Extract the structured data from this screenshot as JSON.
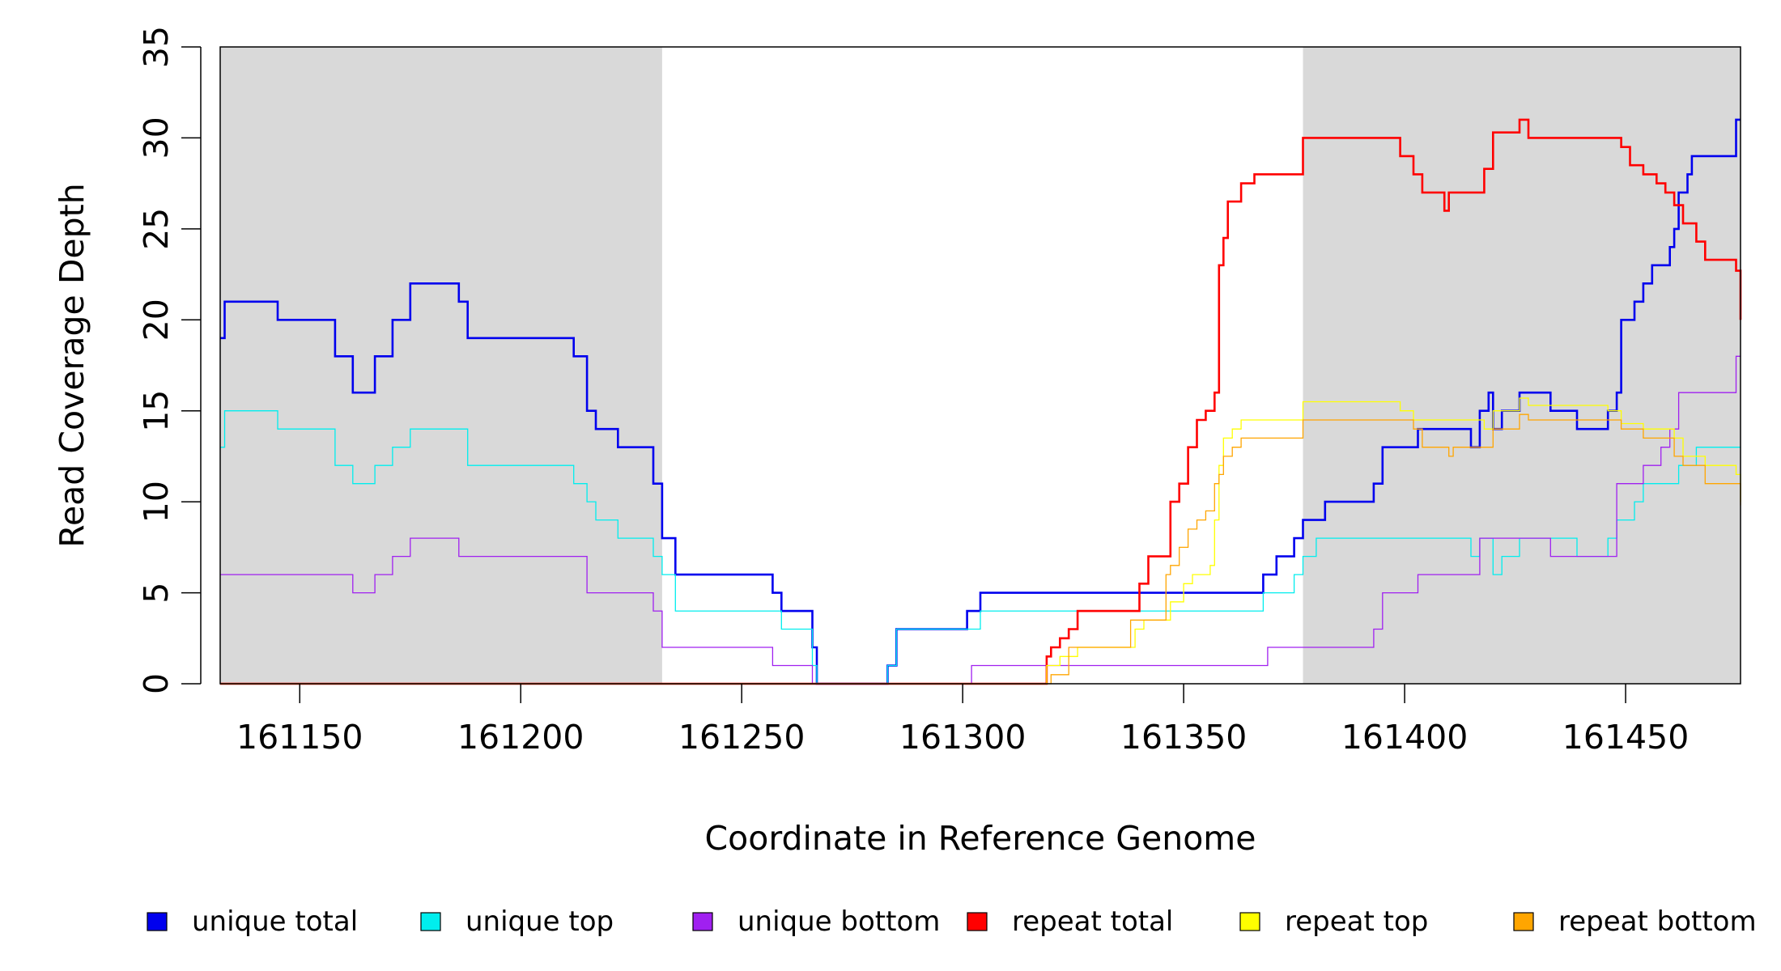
{
  "chart_data": {
    "type": "line",
    "title": "",
    "xlabel": "Coordinate in Reference Genome",
    "ylabel": "Read Coverage Depth",
    "xlim": [
      161132,
      161476
    ],
    "ylim": [
      0,
      35
    ],
    "x_ticks": [
      161150,
      161200,
      161250,
      161300,
      161350,
      161400,
      161450
    ],
    "y_ticks": [
      0,
      5,
      10,
      15,
      20,
      25,
      30,
      35
    ],
    "grid": false,
    "legend_position": "bottom",
    "shaded_regions": [
      {
        "x0": 161132,
        "x1": 161232,
        "color": "#d9d9d9"
      },
      {
        "x0": 161377,
        "x1": 161476,
        "color": "#d9d9d9"
      }
    ],
    "series": [
      {
        "name": "unique total",
        "color": "#0000ee",
        "width": 2.6,
        "points": [
          [
            161132,
            19
          ],
          [
            161133,
            21
          ],
          [
            161145,
            20
          ],
          [
            161158,
            18
          ],
          [
            161162,
            16
          ],
          [
            161167,
            18
          ],
          [
            161171,
            20
          ],
          [
            161175,
            22
          ],
          [
            161186,
            21
          ],
          [
            161188,
            19
          ],
          [
            161200,
            19
          ],
          [
            161212,
            18
          ],
          [
            161215,
            15
          ],
          [
            161217,
            14
          ],
          [
            161222,
            13
          ],
          [
            161230,
            11
          ],
          [
            161232,
            8
          ],
          [
            161235,
            6
          ],
          [
            161257,
            5
          ],
          [
            161259,
            4
          ],
          [
            161266,
            2
          ],
          [
            161267,
            0
          ],
          [
            161283,
            1
          ],
          [
            161285,
            3
          ],
          [
            161293,
            3
          ],
          [
            161301,
            4
          ],
          [
            161304,
            5
          ],
          [
            161320,
            5
          ],
          [
            161338,
            5
          ],
          [
            161340,
            5
          ],
          [
            161368,
            6
          ],
          [
            161371,
            7
          ],
          [
            161375,
            8
          ],
          [
            161377,
            9
          ],
          [
            161382,
            10
          ],
          [
            161393,
            11
          ],
          [
            161395,
            13
          ],
          [
            161403,
            14
          ],
          [
            161415,
            13
          ],
          [
            161417,
            15
          ],
          [
            161419,
            16
          ],
          [
            161420,
            14
          ],
          [
            161422,
            15
          ],
          [
            161426,
            16
          ],
          [
            161433,
            15
          ],
          [
            161439,
            14
          ],
          [
            161446,
            15
          ],
          [
            161448,
            16
          ],
          [
            161449,
            20
          ],
          [
            161452,
            21
          ],
          [
            161454,
            22
          ],
          [
            161456,
            23
          ],
          [
            161460,
            24
          ],
          [
            161461,
            25
          ],
          [
            161462,
            27
          ],
          [
            161464,
            28
          ],
          [
            161465,
            29
          ],
          [
            161475,
            31
          ],
          [
            161476,
            31
          ]
        ]
      },
      {
        "name": "unique top",
        "color": "#00eeee",
        "width": 1.3,
        "points": [
          [
            161132,
            13
          ],
          [
            161133,
            15
          ],
          [
            161145,
            14
          ],
          [
            161158,
            12
          ],
          [
            161162,
            11
          ],
          [
            161167,
            12
          ],
          [
            161171,
            13
          ],
          [
            161175,
            14
          ],
          [
            161188,
            12
          ],
          [
            161212,
            11
          ],
          [
            161215,
            10
          ],
          [
            161217,
            9
          ],
          [
            161222,
            8
          ],
          [
            161230,
            7
          ],
          [
            161232,
            6
          ],
          [
            161235,
            4
          ],
          [
            161259,
            3
          ],
          [
            161266,
            1
          ],
          [
            161267,
            0
          ],
          [
            161283,
            1
          ],
          [
            161285,
            3
          ],
          [
            161301,
            3
          ],
          [
            161304,
            4
          ],
          [
            161368,
            5
          ],
          [
            161371,
            5
          ],
          [
            161375,
            6
          ],
          [
            161377,
            7
          ],
          [
            161380,
            8
          ],
          [
            161415,
            7
          ],
          [
            161417,
            8
          ],
          [
            161420,
            6
          ],
          [
            161422,
            7
          ],
          [
            161426,
            8
          ],
          [
            161439,
            7
          ],
          [
            161446,
            8
          ],
          [
            161448,
            9
          ],
          [
            161452,
            10
          ],
          [
            161454,
            11
          ],
          [
            161462,
            12
          ],
          [
            161466,
            13
          ],
          [
            161476,
            13
          ]
        ]
      },
      {
        "name": "unique bottom",
        "color": "#a020f0",
        "width": 1.3,
        "points": [
          [
            161132,
            6
          ],
          [
            161162,
            5
          ],
          [
            161167,
            6
          ],
          [
            161171,
            7
          ],
          [
            161175,
            8
          ],
          [
            161186,
            7
          ],
          [
            161215,
            5
          ],
          [
            161230,
            4
          ],
          [
            161232,
            2
          ],
          [
            161257,
            1
          ],
          [
            161266,
            0
          ],
          [
            161301,
            0
          ],
          [
            161302,
            1
          ],
          [
            161369,
            2
          ],
          [
            161393,
            3
          ],
          [
            161395,
            5
          ],
          [
            161403,
            6
          ],
          [
            161417,
            8
          ],
          [
            161433,
            7
          ],
          [
            161448,
            11
          ],
          [
            161454,
            12
          ],
          [
            161458,
            13
          ],
          [
            161460,
            14
          ],
          [
            161462,
            16
          ],
          [
            161475,
            18
          ],
          [
            161476,
            18
          ]
        ]
      },
      {
        "name": "repeat total",
        "color": "#ff0000",
        "width": 2.6,
        "points": [
          [
            161132,
            0
          ],
          [
            161318,
            0
          ],
          [
            161319,
            1.5
          ],
          [
            161320,
            2
          ],
          [
            161322,
            2.5
          ],
          [
            161324,
            3
          ],
          [
            161326,
            4
          ],
          [
            161338,
            4
          ],
          [
            161340,
            5.5
          ],
          [
            161342,
            7
          ],
          [
            161347,
            10
          ],
          [
            161349,
            11
          ],
          [
            161351,
            13
          ],
          [
            161353,
            14.5
          ],
          [
            161355,
            15
          ],
          [
            161357,
            16
          ],
          [
            161358,
            23
          ],
          [
            161359,
            24.5
          ],
          [
            161360,
            26.5
          ],
          [
            161363,
            27.5
          ],
          [
            161366,
            28
          ],
          [
            161376,
            28
          ],
          [
            161377,
            30
          ],
          [
            161399,
            29
          ],
          [
            161402,
            28
          ],
          [
            161404,
            27
          ],
          [
            161409,
            26
          ],
          [
            161410,
            27
          ],
          [
            161418,
            28.3
          ],
          [
            161420,
            30.3
          ],
          [
            161426,
            31
          ],
          [
            161428,
            30
          ],
          [
            161446,
            30
          ],
          [
            161449,
            29.5
          ],
          [
            161451,
            28.5
          ],
          [
            161454,
            28
          ],
          [
            161457,
            27.5
          ],
          [
            161459,
            27
          ],
          [
            161461,
            26.3
          ],
          [
            161463,
            25.3
          ],
          [
            161466,
            24.3
          ],
          [
            161468,
            23.3
          ],
          [
            161475,
            22.7
          ],
          [
            161476,
            20
          ]
        ]
      },
      {
        "name": "repeat top",
        "color": "#ffff00",
        "width": 1.3,
        "points": [
          [
            161132,
            0
          ],
          [
            161318,
            0
          ],
          [
            161319,
            1
          ],
          [
            161322,
            1.5
          ],
          [
            161326,
            2
          ],
          [
            161338,
            2
          ],
          [
            161339,
            3
          ],
          [
            161341,
            3.5
          ],
          [
            161347,
            4.5
          ],
          [
            161350,
            5.5
          ],
          [
            161352,
            6
          ],
          [
            161356,
            6.5
          ],
          [
            161357,
            9
          ],
          [
            161358,
            12
          ],
          [
            161359,
            13.5
          ],
          [
            161361,
            14
          ],
          [
            161363,
            14.5
          ],
          [
            161376,
            14.5
          ],
          [
            161377,
            15.5
          ],
          [
            161399,
            15
          ],
          [
            161402,
            14.5
          ],
          [
            161418,
            14
          ],
          [
            161420,
            15
          ],
          [
            161426,
            15.7
          ],
          [
            161428,
            15.3
          ],
          [
            161446,
            15
          ],
          [
            161449,
            14.3
          ],
          [
            161454,
            14
          ],
          [
            161461,
            13.5
          ],
          [
            161463,
            12.5
          ],
          [
            161468,
            12
          ],
          [
            161475,
            11.5
          ],
          [
            161476,
            10
          ]
        ]
      },
      {
        "name": "repeat bottom",
        "color": "#ffa500",
        "width": 1.3,
        "points": [
          [
            161132,
            0
          ],
          [
            161318,
            0
          ],
          [
            161320,
            0.5
          ],
          [
            161324,
            2
          ],
          [
            161336,
            2
          ],
          [
            161338,
            3.5
          ],
          [
            161345,
            3.5
          ],
          [
            161346,
            6
          ],
          [
            161347,
            6.5
          ],
          [
            161349,
            7.5
          ],
          [
            161351,
            8.5
          ],
          [
            161353,
            9
          ],
          [
            161355,
            9.5
          ],
          [
            161357,
            11
          ],
          [
            161358,
            11.5
          ],
          [
            161359,
            12.5
          ],
          [
            161361,
            13
          ],
          [
            161363,
            13.5
          ],
          [
            161376,
            13.5
          ],
          [
            161377,
            14.5
          ],
          [
            161399,
            14.5
          ],
          [
            161402,
            14
          ],
          [
            161404,
            13
          ],
          [
            161410,
            12.5
          ],
          [
            161411,
            13
          ],
          [
            161418,
            13
          ],
          [
            161420,
            14
          ],
          [
            161426,
            14.8
          ],
          [
            161428,
            14.5
          ],
          [
            161446,
            14.5
          ],
          [
            161449,
            14
          ],
          [
            161454,
            13.5
          ],
          [
            161461,
            12.5
          ],
          [
            161463,
            12
          ],
          [
            161468,
            11
          ],
          [
            161475,
            11
          ],
          [
            161476,
            9.8
          ]
        ]
      }
    ]
  }
}
